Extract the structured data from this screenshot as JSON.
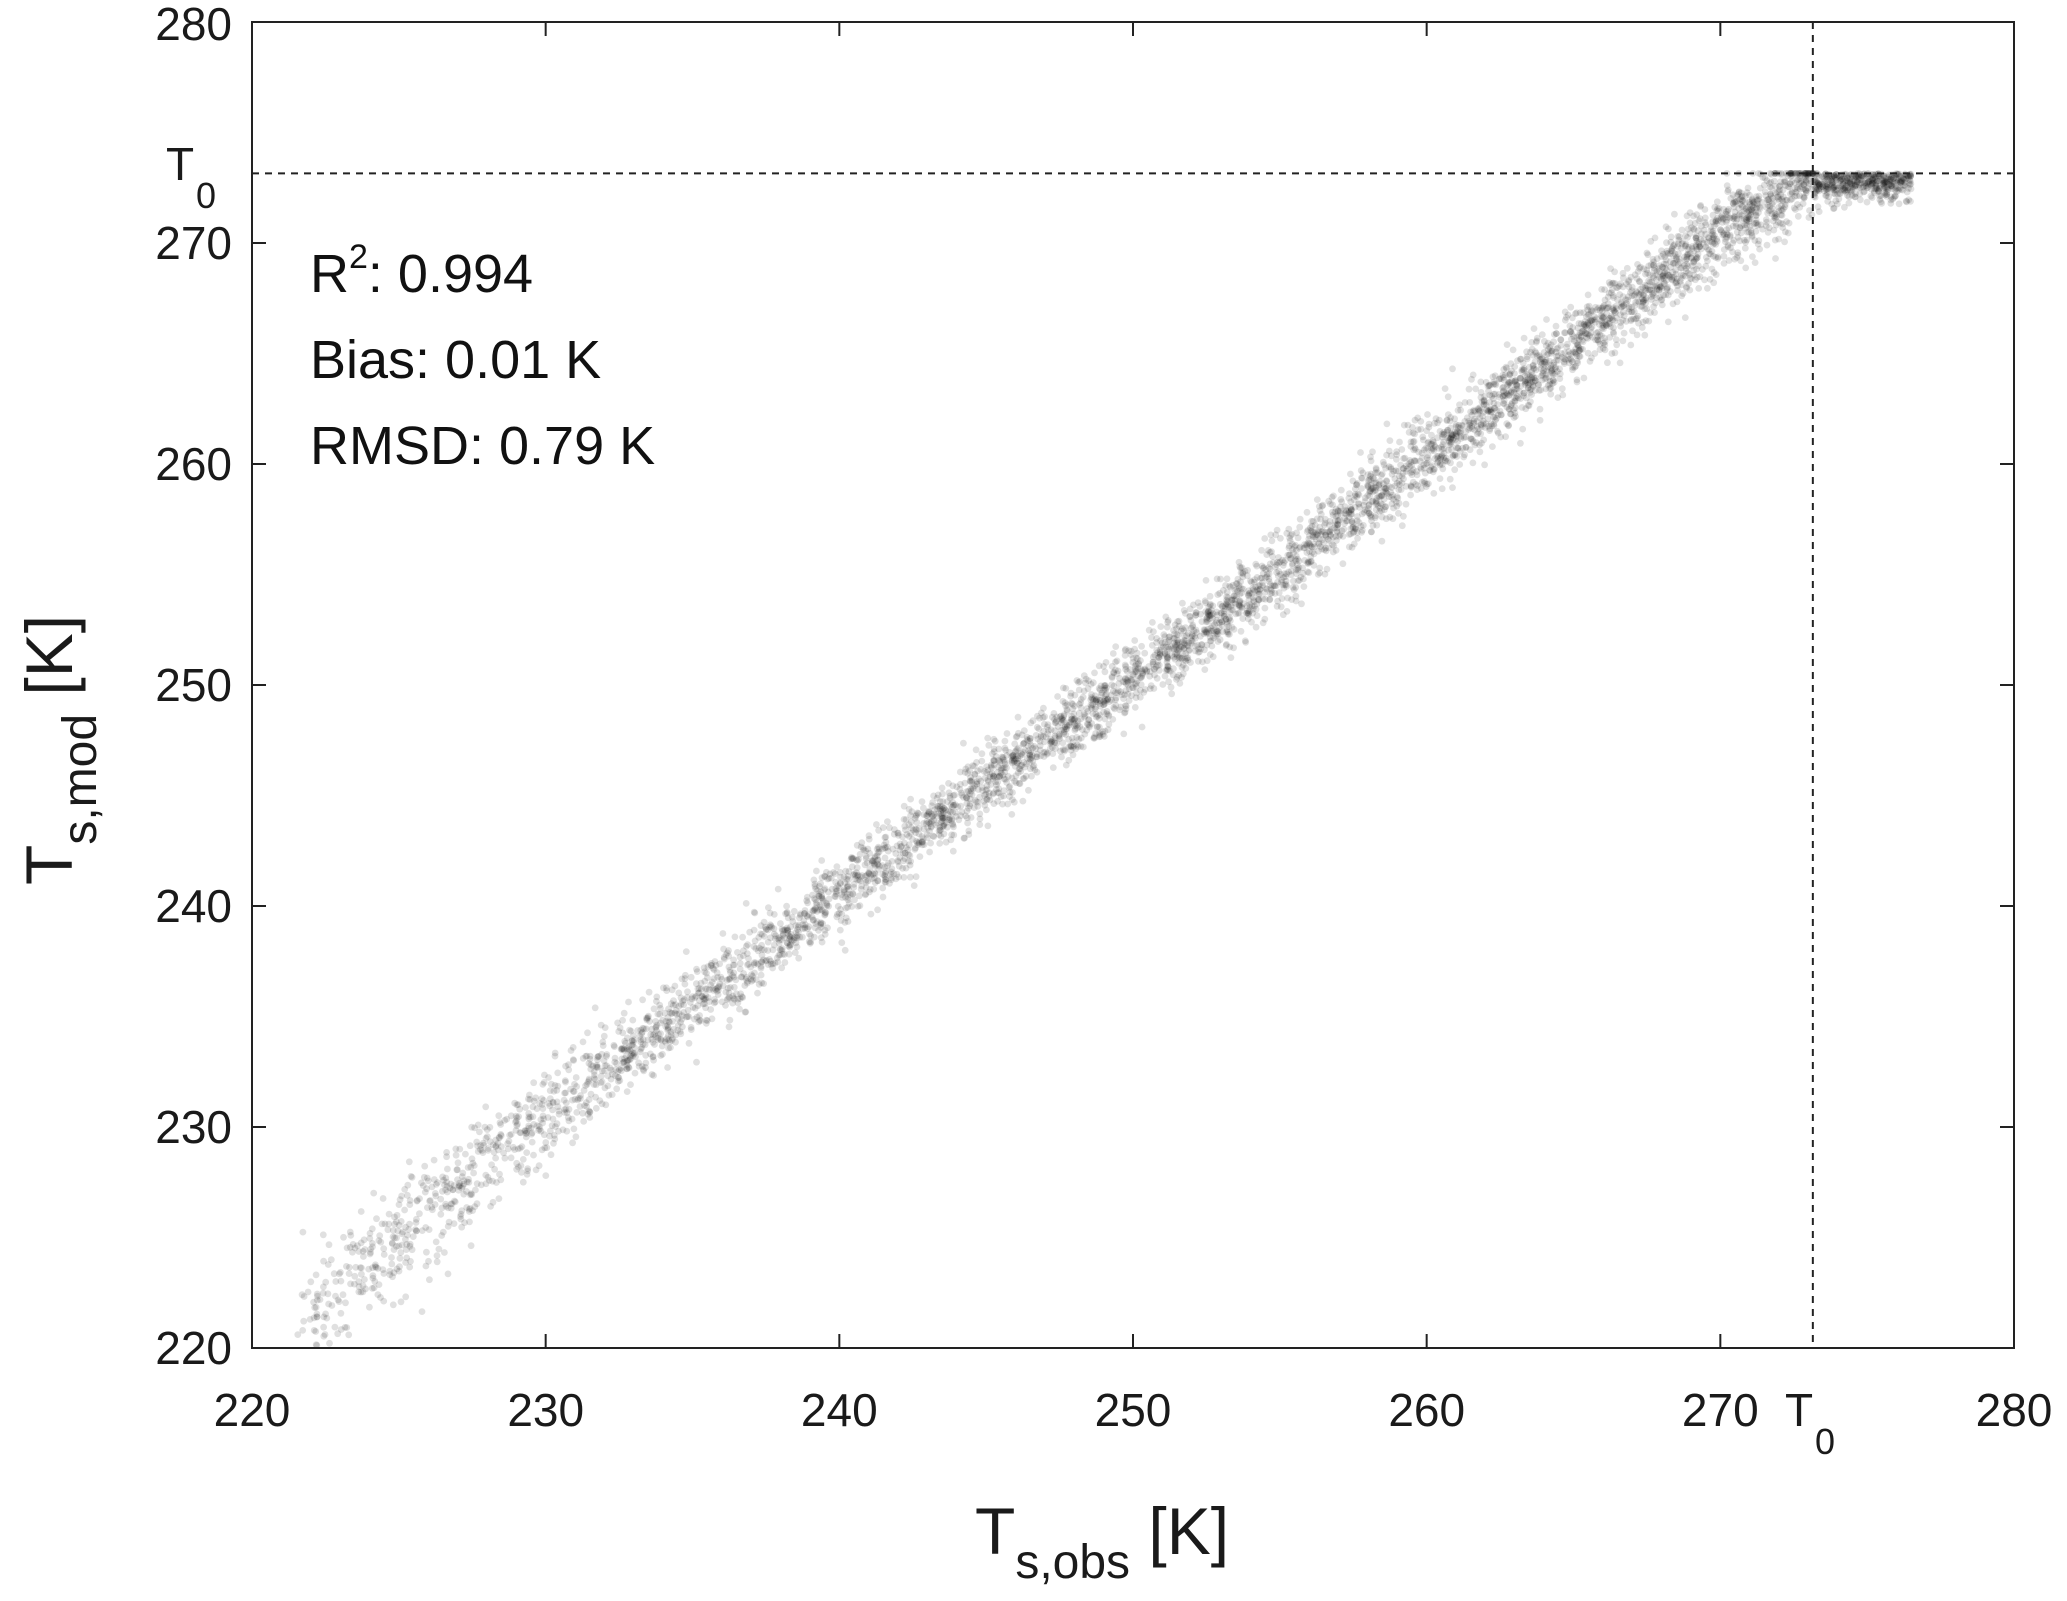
{
  "chart_data": {
    "type": "scatter",
    "title": "",
    "x_axis": {
      "label_main": "T",
      "label_sub": "s,obs",
      "label_unit": " [K]",
      "range": [
        220,
        280
      ],
      "ticks": [
        "220",
        "230",
        "240",
        "250",
        "260",
        "270",
        "280"
      ],
      "tick_values": [
        220,
        230,
        240,
        250,
        260,
        270,
        280
      ]
    },
    "y_axis": {
      "label_main": "T",
      "label_sub": "s,mod",
      "label_unit": " [K]",
      "range": [
        220,
        280
      ],
      "ticks": [
        "220",
        "230",
        "240",
        "250",
        "260",
        "270",
        "280"
      ],
      "tick_values": [
        220,
        230,
        240,
        250,
        260,
        270,
        280
      ]
    },
    "reference_lines": [
      {
        "axis": "x",
        "value": 273.15,
        "label_main": "T",
        "label_sub": "0",
        "style": "dashed"
      },
      {
        "axis": "y",
        "value": 273.15,
        "label_main": "T",
        "label_sub": "0",
        "style": "dashed"
      }
    ],
    "stats": {
      "r2_prefix": "R",
      "r2_sup": "2",
      "r2_rest": ": 0.994",
      "bias": "Bias: 0.01 K",
      "rmsd": "RMSD: 0.79 K"
    },
    "scatter_trend": {
      "x": [
        221.5,
        225,
        230,
        235,
        240,
        245,
        250,
        255,
        260,
        265,
        270,
        273.15
      ],
      "y": [
        221.2,
        225,
        230.5,
        235.6,
        240.5,
        245.5,
        250.2,
        255.1,
        260.4,
        265.4,
        270.5,
        273.15
      ],
      "spread": [
        1.4,
        1.3,
        1.1,
        0.9,
        0.8,
        0.8,
        0.8,
        0.8,
        0.8,
        0.8,
        0.9,
        0.9
      ],
      "x_max_at_cap": 276.5,
      "cap_value": 273.15
    },
    "marker_color": "#000000",
    "grid": false,
    "legend": "none"
  }
}
